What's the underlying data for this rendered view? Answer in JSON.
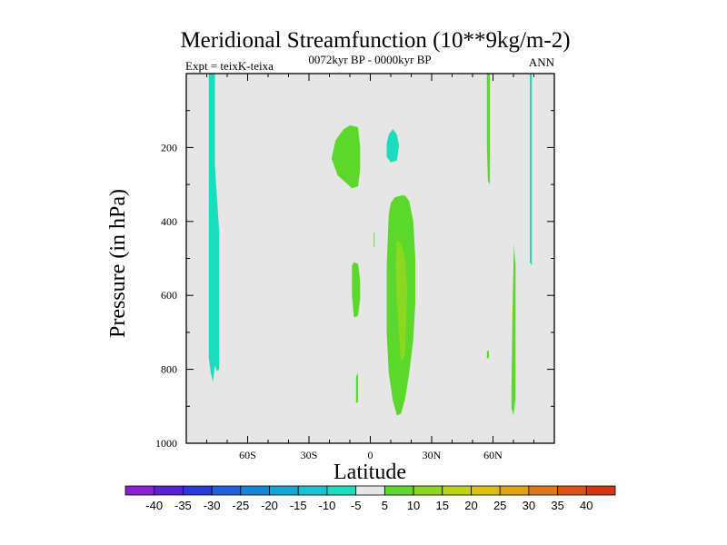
{
  "chart_data": {
    "type": "heatmap",
    "title": "Meridional Streamfunction (10**9kg/m-2)",
    "subtitle_left": "Expt = teixK-teixa",
    "subtitle_center": "0072kyr BP - 0000kyr BP",
    "subtitle_right": "ANN",
    "xlabel": "Latitude",
    "ylabel": "Pressure (in hPa)",
    "xlim": [
      -90,
      90
    ],
    "ylim": [
      0,
      1000
    ],
    "y_inverted": true,
    "xticks": [
      {
        "value": -60,
        "label": "60S"
      },
      {
        "value": -30,
        "label": "30S"
      },
      {
        "value": 0,
        "label": "0"
      },
      {
        "value": 30,
        "label": "30N"
      },
      {
        "value": 60,
        "label": "60N"
      }
    ],
    "yticks": [
      {
        "value": 200,
        "label": "200"
      },
      {
        "value": 400,
        "label": "400"
      },
      {
        "value": 600,
        "label": "600"
      },
      {
        "value": 800,
        "label": "800"
      },
      {
        "value": 1000,
        "label": "1000"
      }
    ],
    "background_color": "#e6e6e6",
    "colorbar": {
      "levels": [
        -40,
        -35,
        -30,
        -25,
        -20,
        -15,
        -10,
        -5,
        5,
        10,
        15,
        20,
        25,
        30,
        35,
        40
      ],
      "colors": [
        "#8c20d4",
        "#5a20d8",
        "#2e3ad8",
        "#2060dc",
        "#1488d8",
        "#10a8d8",
        "#16c4d4",
        "#1cdcc0",
        "#e6e6e6",
        "#5cd82c",
        "#8ad820",
        "#bcd414",
        "#dcc010",
        "#e0a010",
        "#e07818",
        "#dc5018",
        "#d83410"
      ]
    },
    "regions": [
      {
        "name": "negative-column-70S",
        "value_range": [
          -10,
          -5
        ],
        "color": "#1cdcc0",
        "points": [
          [
            -79,
            0
          ],
          [
            -76,
            0
          ],
          [
            -76,
            250
          ],
          [
            -74,
            420
          ],
          [
            -74,
            800
          ],
          [
            -75,
            805
          ],
          [
            -76,
            790
          ],
          [
            -77,
            835
          ],
          [
            -78,
            810
          ],
          [
            -79,
            770
          ],
          [
            -79,
            400
          ]
        ]
      },
      {
        "name": "negative-sliver-78N",
        "value_range": [
          -10,
          -5
        ],
        "color": "#1cdcc0",
        "points": [
          [
            78,
            0
          ],
          [
            79,
            0
          ],
          [
            79,
            520
          ],
          [
            78,
            510
          ]
        ]
      },
      {
        "name": "negative-upper-10N",
        "value_range": [
          -10,
          -5
        ],
        "color": "#1cdcc0",
        "points": [
          [
            8,
            190
          ],
          [
            9,
            165
          ],
          [
            11,
            150
          ],
          [
            13,
            165
          ],
          [
            14,
            195
          ],
          [
            13,
            235
          ],
          [
            10,
            240
          ],
          [
            8,
            225
          ]
        ]
      },
      {
        "name": "positive-upper-15S",
        "value_range": [
          5,
          10
        ],
        "color": "#5cd82c",
        "points": [
          [
            -19,
            230
          ],
          [
            -17,
            180
          ],
          [
            -13,
            150
          ],
          [
            -10,
            140
          ],
          [
            -6,
            145
          ],
          [
            -5,
            200
          ],
          [
            -5,
            260
          ],
          [
            -6,
            305
          ],
          [
            -9,
            310
          ],
          [
            -12,
            295
          ],
          [
            -16,
            275
          ]
        ]
      },
      {
        "name": "positive-column-15N",
        "value_range": [
          5,
          10
        ],
        "color": "#5cd82c",
        "points": [
          [
            9,
            380
          ],
          [
            10,
            350
          ],
          [
            12,
            335
          ],
          [
            15,
            330
          ],
          [
            17,
            330
          ],
          [
            19,
            345
          ],
          [
            21,
            400
          ],
          [
            22,
            500
          ],
          [
            22,
            620
          ],
          [
            21,
            720
          ],
          [
            19,
            810
          ],
          [
            17,
            880
          ],
          [
            15,
            920
          ],
          [
            13,
            925
          ],
          [
            11,
            885
          ],
          [
            9,
            810
          ],
          [
            8,
            700
          ],
          [
            8,
            520
          ]
        ]
      },
      {
        "name": "positive-core-15N",
        "value_range": [
          10,
          15
        ],
        "color": "#8ad820",
        "points": [
          [
            13,
            450
          ],
          [
            15,
            460
          ],
          [
            17,
            500
          ],
          [
            18,
            580
          ],
          [
            17.5,
            680
          ],
          [
            17,
            760
          ],
          [
            15,
            780
          ],
          [
            14,
            700
          ],
          [
            13,
            620
          ],
          [
            12.5,
            520
          ]
        ]
      },
      {
        "name": "positive-blob-8S",
        "value_range": [
          5,
          10
        ],
        "color": "#5cd82c",
        "points": [
          [
            -9,
            520
          ],
          [
            -8,
            510
          ],
          [
            -6,
            515
          ],
          [
            -5,
            560
          ],
          [
            -5,
            610
          ],
          [
            -6,
            655
          ],
          [
            -8,
            660
          ],
          [
            -9,
            600
          ]
        ]
      },
      {
        "name": "positive-lower-7S",
        "value_range": [
          5,
          10
        ],
        "color": "#5cd82c",
        "points": [
          [
            -7,
            820
          ],
          [
            -6,
            810
          ],
          [
            -6,
            890
          ],
          [
            -7,
            890
          ]
        ]
      },
      {
        "name": "positive-dot-2N",
        "value_range": [
          5,
          10
        ],
        "color": "#5cd82c",
        "points": [
          [
            1.7,
            430
          ],
          [
            2.1,
            430
          ],
          [
            2.1,
            470
          ],
          [
            1.7,
            470
          ]
        ]
      },
      {
        "name": "positive-sliver-58N",
        "value_range": [
          5,
          10
        ],
        "color": "#5cd82c",
        "points": [
          [
            57,
            0
          ],
          [
            58.5,
            0
          ],
          [
            58.5,
            300
          ],
          [
            57.5,
            290
          ],
          [
            57,
            200
          ]
        ]
      },
      {
        "name": "positive-dot-58N",
        "value_range": [
          5,
          10
        ],
        "color": "#5cd82c",
        "points": [
          [
            57,
            750
          ],
          [
            58,
            750
          ],
          [
            58,
            770
          ],
          [
            57,
            770
          ]
        ]
      },
      {
        "name": "positive-column-70N",
        "value_range": [
          5,
          10
        ],
        "color": "#5cd82c",
        "points": [
          [
            69,
            860
          ],
          [
            69.5,
            650
          ],
          [
            70.2,
            460
          ],
          [
            71,
            520
          ],
          [
            71,
            880
          ],
          [
            70,
            925
          ],
          [
            69,
            905
          ]
        ]
      }
    ]
  }
}
